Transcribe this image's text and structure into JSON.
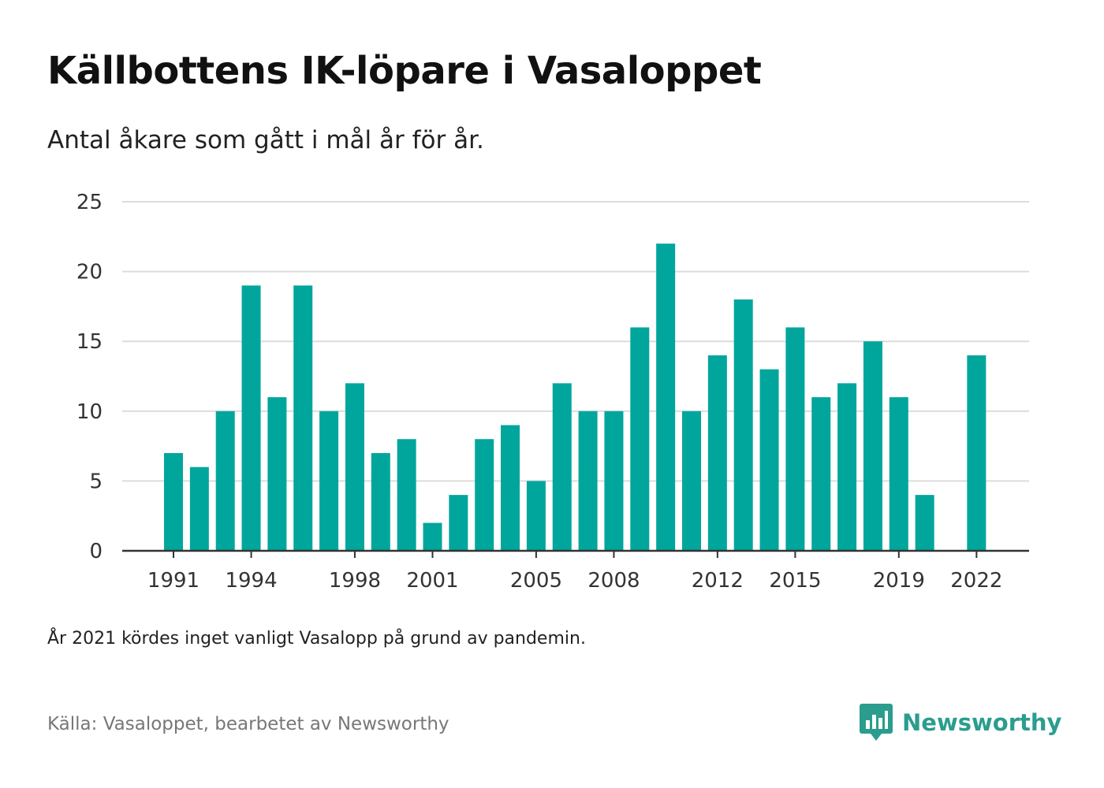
{
  "title": "Källbottens IK-löpare i Vasaloppet",
  "subtitle": "Antal åkare som gått i mål år för år.",
  "note": "År 2021 kördes inget vanligt Vasalopp på grund av pandemin.",
  "source": "Källa: Vasaloppet, bearbetet av Newsworthy",
  "brand": {
    "name": "Newsworthy",
    "color": "#2a9d8f"
  },
  "colors": {
    "bar": "#00a69c",
    "grid": "#dcdcdc",
    "axis": "#333333",
    "tick_text": "#333333"
  },
  "chart_data": {
    "type": "bar",
    "title": "Källbottens IK-löpare i Vasaloppet",
    "subtitle": "Antal åkare som gått i mål år för år.",
    "xlabel": "",
    "ylabel": "",
    "ylim": [
      0,
      25
    ],
    "yticks": [
      0,
      5,
      10,
      15,
      20,
      25
    ],
    "grid": true,
    "categories": [
      1991,
      1992,
      1993,
      1994,
      1995,
      1996,
      1997,
      1998,
      1999,
      2000,
      2001,
      2002,
      2003,
      2004,
      2005,
      2006,
      2007,
      2008,
      2009,
      2010,
      2011,
      2012,
      2013,
      2014,
      2015,
      2016,
      2017,
      2018,
      2019,
      2020,
      2021,
      2022
    ],
    "values": [
      7,
      6,
      10,
      19,
      11,
      19,
      10,
      12,
      7,
      8,
      2,
      4,
      8,
      9,
      5,
      12,
      10,
      10,
      16,
      22,
      10,
      14,
      18,
      13,
      16,
      11,
      12,
      15,
      11,
      4,
      null,
      14
    ],
    "xtick_labels": [
      "1991",
      "1994",
      "1998",
      "2001",
      "2005",
      "2008",
      "2012",
      "2015",
      "2019",
      "2022"
    ]
  }
}
